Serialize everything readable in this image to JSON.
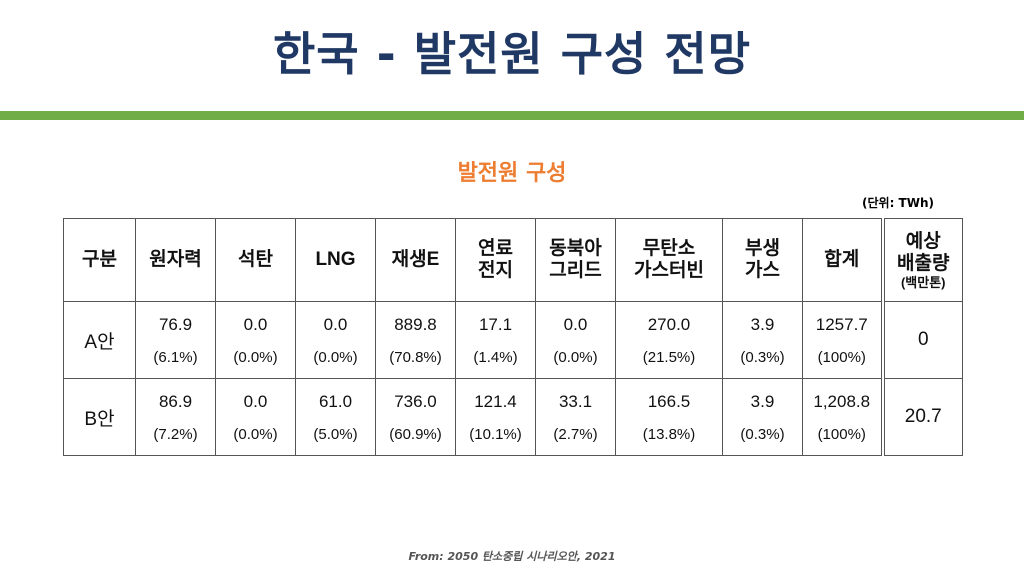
{
  "title": "한국 - 발전원 구성 전망",
  "subtitle": "발전원 구성",
  "unit": "(단위: TWh)",
  "headers": [
    "구분",
    "원자력",
    "석탄",
    "LNG",
    "재생E",
    "연료\n전지",
    "동북아\n그리드",
    "무탄소\n가스터빈",
    "부생\n가스",
    "합계",
    "예상\n배출량"
  ],
  "headers_sub": "(백만톤)",
  "rows": [
    {
      "label": "A안",
      "cells": [
        [
          "76.9",
          "(6.1%)"
        ],
        [
          "0.0",
          "(0.0%)"
        ],
        [
          "0.0",
          "(0.0%)"
        ],
        [
          "889.8",
          "(70.8%)"
        ],
        [
          "17.1",
          "(1.4%)"
        ],
        [
          "0.0",
          "(0.0%)"
        ],
        [
          "270.0",
          "(21.5%)"
        ],
        [
          "3.9",
          "(0.3%)"
        ],
        [
          "1257.7",
          "(100%)"
        ]
      ],
      "emission": "0"
    },
    {
      "label": "B안",
      "cells": [
        [
          "86.9",
          "(7.2%)"
        ],
        [
          "0.0",
          "(0.0%)"
        ],
        [
          "61.0",
          "(5.0%)"
        ],
        [
          "736.0",
          "(60.9%)"
        ],
        [
          "121.4",
          "(10.1%)"
        ],
        [
          "33.1",
          "(2.7%)"
        ],
        [
          "166.5",
          "(13.8%)"
        ],
        [
          "3.9",
          "(0.3%)"
        ],
        [
          "1,208.8",
          "(100%)"
        ]
      ],
      "emission": "20.7"
    }
  ],
  "source": "From: 2050 탄소중립 시나리오안, 2021"
}
